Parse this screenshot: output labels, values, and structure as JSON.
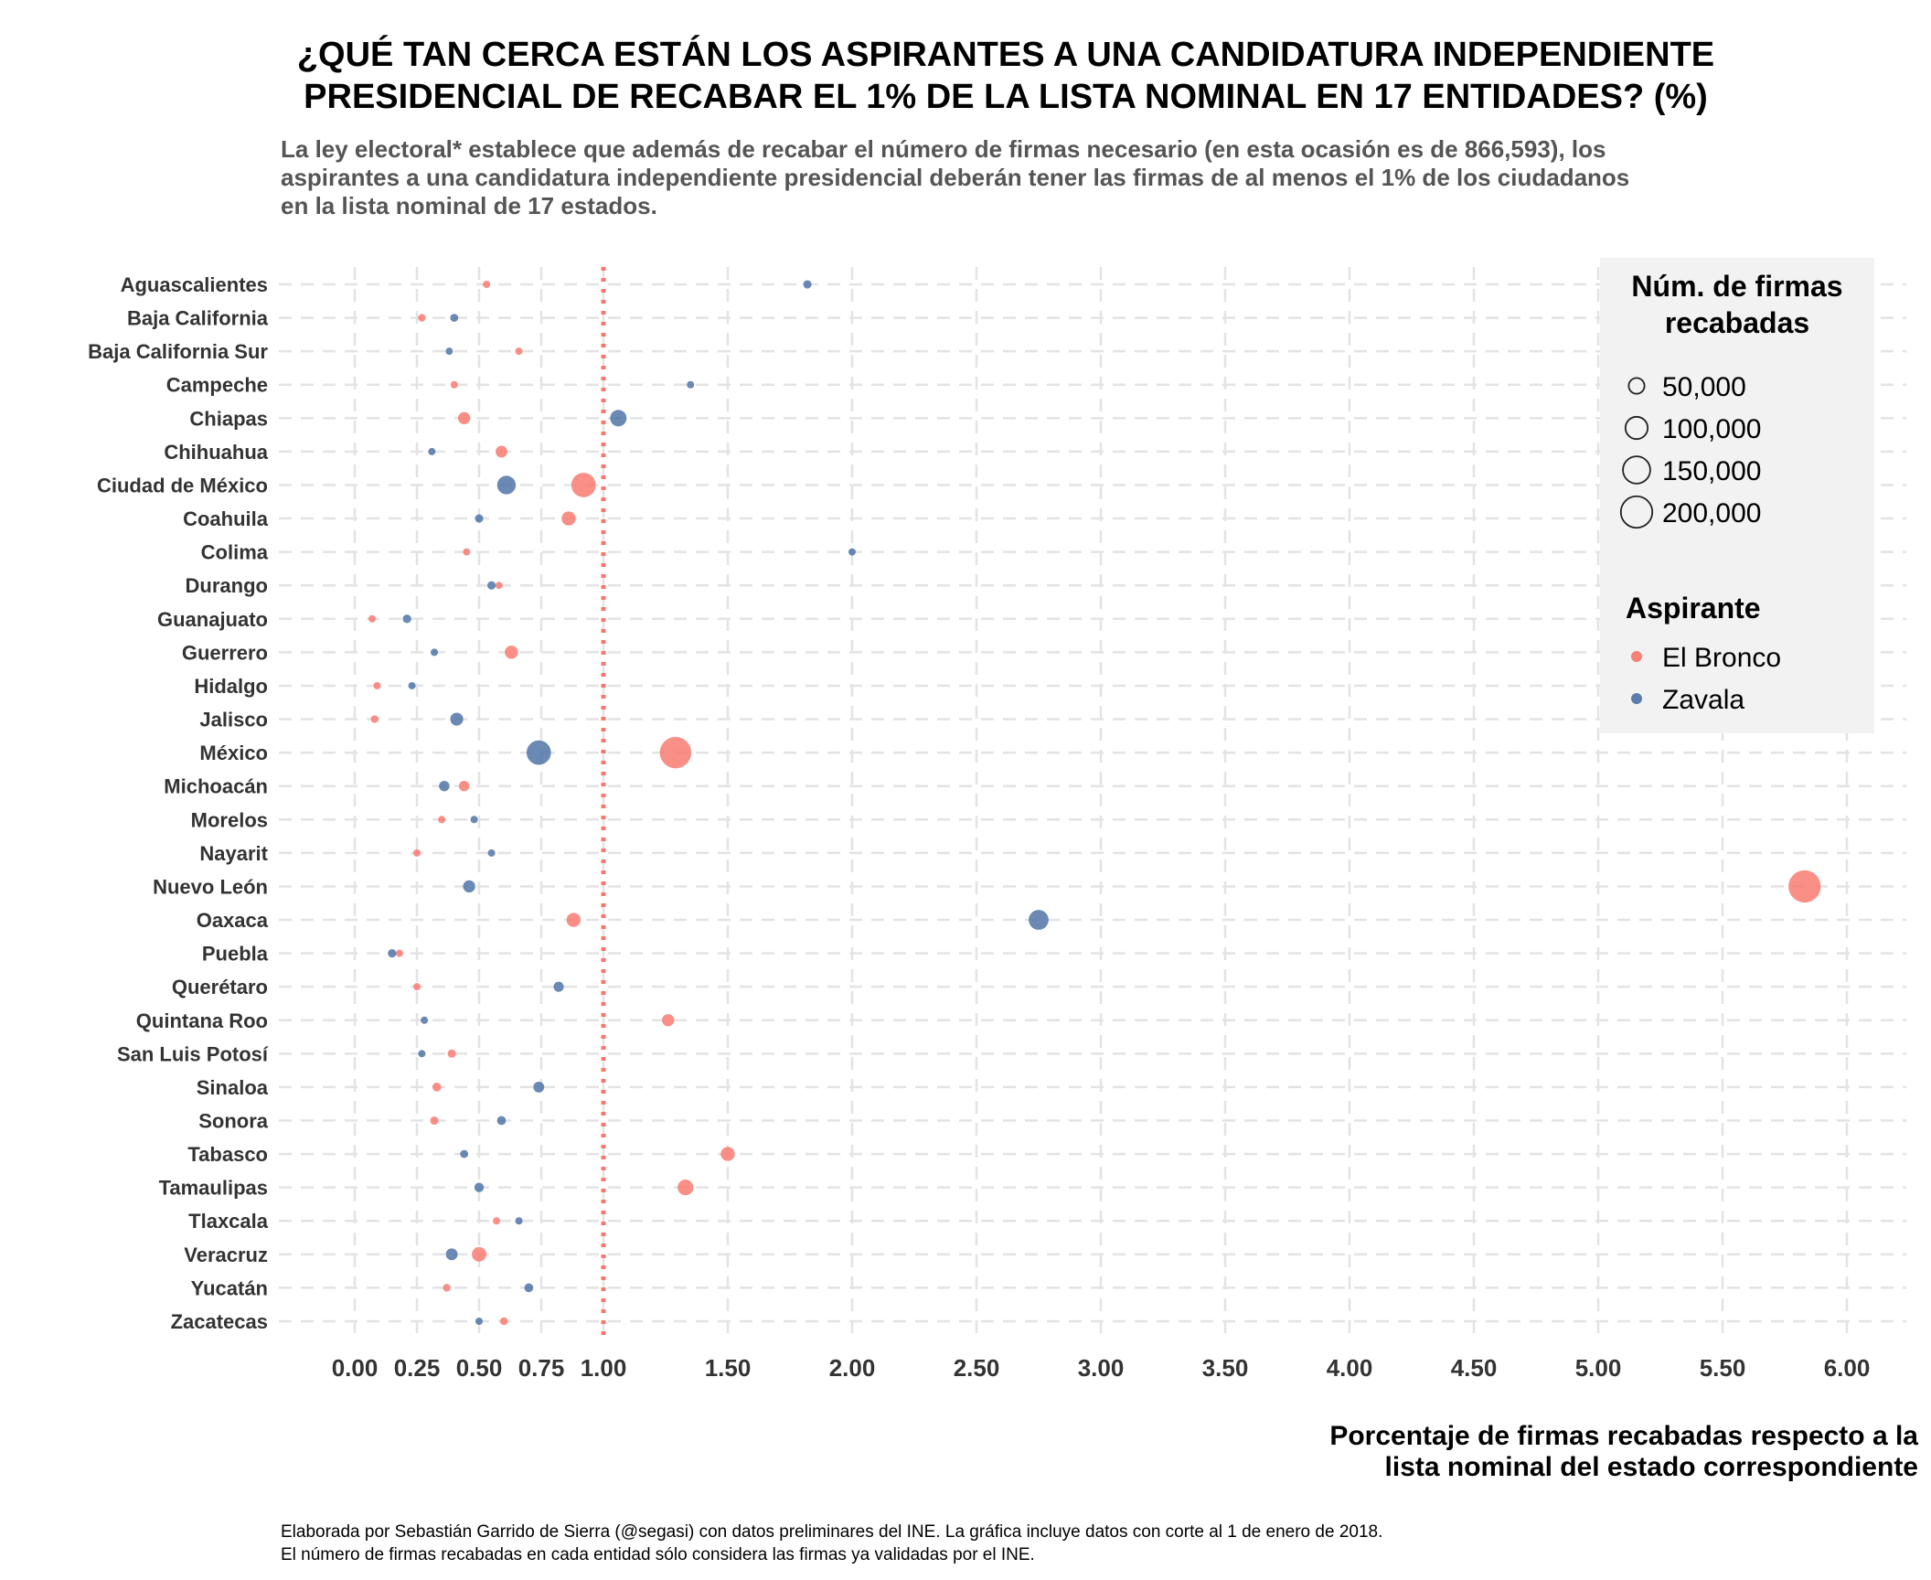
{
  "chart_data": {
    "type": "scatter",
    "title": [
      "¿QUÉ TAN CERCA ESTÁN LOS ASPIRANTES A UNA CANDIDATURA INDEPENDIENTE",
      "PRESIDENCIAL DE RECABAR EL 1% DE LA LISTA NOMINAL EN 17 ENTIDADES? (%)"
    ],
    "subtitle": [
      "La ley electoral* establece que además de recabar el número de firmas necesario (en esta ocasión es de 866,593), los",
      "aspirantes a una candidatura independiente presidencial deberán tener las firmas de al menos el 1% de los ciudadanos",
      "en la lista nominal de 17 estados."
    ],
    "xlabel": [
      "Porcentaje de firmas recabadas respecto a la",
      "lista nominal del estado correspondiente"
    ],
    "caption": [
      "Elaborada por Sebastián Garrido de Sierra (@segasi) con datos preliminares del INE. La gráfica incluye datos con corte al 1 de enero de 2018.",
      "El número de firmas recabadas en cada entidad sólo considera las firmas ya validadas por el INE."
    ],
    "xlim": [
      -0.3,
      6.2
    ],
    "x_ticks": [
      0,
      0.25,
      0.5,
      0.75,
      1,
      1.5,
      2,
      2.5,
      3,
      3.5,
      4,
      4.5,
      5,
      5.5,
      6
    ],
    "x_tick_labels": [
      "0.00",
      "0.25",
      "0.50",
      "0.75",
      "1.00",
      "1.50",
      "2.00",
      "2.50",
      "3.00",
      "3.50",
      "4.00",
      "4.50",
      "5.00",
      "5.50",
      "6.00"
    ],
    "reference_line": {
      "x": 1.0,
      "color": "#f8766d",
      "style": "dotted"
    },
    "grid": true,
    "states": [
      "Aguascalientes",
      "Baja California",
      "Baja California Sur",
      "Campeche",
      "Chiapas",
      "Chihuahua",
      "Ciudad de México",
      "Coahuila",
      "Colima",
      "Durango",
      "Guanajuato",
      "Guerrero",
      "Hidalgo",
      "Jalisco",
      "México",
      "Michoacán",
      "Morelos",
      "Nayarit",
      "Nuevo León",
      "Oaxaca",
      "Puebla",
      "Querétaro",
      "Quintana Roo",
      "San Luis Potosí",
      "Sinaloa",
      "Sonora",
      "Tabasco",
      "Tamaulipas",
      "Tlaxcala",
      "Veracruz",
      "Yucatán",
      "Zacatecas"
    ],
    "series": [
      {
        "name": "El Bronco",
        "color": "#f8766d",
        "x": [
          0.53,
          0.27,
          0.66,
          0.4,
          0.44,
          0.59,
          0.92,
          0.86,
          0.45,
          0.58,
          0.07,
          0.63,
          0.09,
          0.08,
          1.29,
          0.44,
          0.35,
          0.25,
          5.83,
          0.88,
          0.18,
          0.25,
          1.26,
          0.39,
          0.33,
          0.32,
          1.5,
          1.33,
          0.57,
          0.5,
          0.37,
          0.6
        ],
        "firmas": [
          8000,
          12000,
          5000,
          6000,
          30000,
          28000,
          120000,
          40000,
          4500,
          9000,
          8000,
          35000,
          5000,
          12000,
          200000,
          22000,
          10000,
          5000,
          210000,
          40000,
          10000,
          9000,
          30000,
          14000,
          16000,
          14000,
          40000,
          50000,
          7000,
          42000,
          12000,
          12000
        ]
      },
      {
        "name": "Zavala",
        "color": "#4a6fa5",
        "x": [
          1.82,
          0.4,
          0.38,
          1.35,
          1.06,
          0.31,
          0.61,
          0.5,
          2.0,
          0.55,
          0.21,
          0.32,
          0.23,
          0.41,
          0.74,
          0.36,
          0.48,
          0.55,
          0.46,
          2.75,
          0.15,
          0.82,
          0.28,
          0.27,
          0.74,
          0.59,
          0.44,
          0.5,
          0.66,
          0.39,
          0.7,
          0.5
        ],
        "firmas": [
          14000,
          13000,
          3000,
          11000,
          55000,
          10000,
          70000,
          14000,
          10000,
          14000,
          15000,
          11000,
          8000,
          34000,
          120000,
          22000,
          11000,
          8000,
          30000,
          80000,
          14000,
          21000,
          8000,
          9000,
          24000,
          16000,
          13000,
          18000,
          11000,
          28000,
          16000,
          11000
        ]
      }
    ],
    "legend": {
      "placement": "top-right",
      "size_title": [
        "Núm. de firmas",
        "recabadas"
      ],
      "size_entries": [
        {
          "label": "50,000",
          "value": 50000
        },
        {
          "label": "100,000",
          "value": 100000
        },
        {
          "label": "150,000",
          "value": 150000
        },
        {
          "label": "200,000",
          "value": 200000
        }
      ],
      "color_title": "Aspirante",
      "color_entries": [
        "El Bronco",
        "Zavala"
      ]
    }
  }
}
